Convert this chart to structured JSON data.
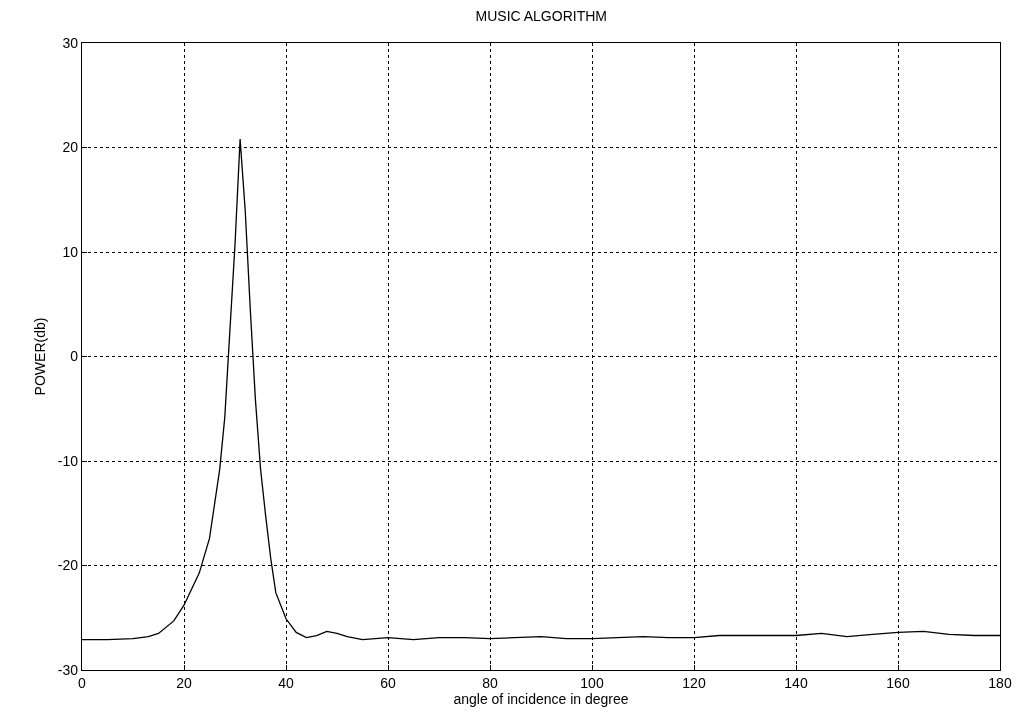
{
  "chart_data": {
    "type": "line",
    "title": "MUSIC ALGORITHM",
    "xlabel": "angle of incidence in degree",
    "ylabel": "POWER(db)",
    "series": [
      {
        "color": "#000000",
        "x": [
          0,
          5,
          10,
          13,
          15,
          18,
          20,
          23,
          25,
          27,
          28,
          29,
          30,
          31,
          32,
          33,
          34,
          35,
          36,
          37,
          38,
          40,
          42,
          44,
          46,
          48,
          50,
          52,
          55,
          60,
          65,
          70,
          75,
          80,
          90,
          95,
          100,
          110,
          115,
          120,
          125,
          135,
          140,
          145,
          150,
          155,
          160,
          165,
          170,
          175,
          180
        ],
        "values": [
          -27.1,
          -27.1,
          -27.0,
          -26.8,
          -26.5,
          -25.3,
          -23.8,
          -20.7,
          -17.4,
          -10.8,
          -5.8,
          2.5,
          10.7,
          20.8,
          14.0,
          4.5,
          -4.1,
          -10.7,
          -15.2,
          -19.3,
          -22.6,
          -25.1,
          -26.4,
          -26.9,
          -26.7,
          -26.3,
          -26.5,
          -26.8,
          -27.1,
          -26.9,
          -27.1,
          -26.9,
          -26.9,
          -27.0,
          -26.8,
          -27.0,
          -27.0,
          -26.8,
          -26.9,
          -26.9,
          -26.7,
          -26.7,
          -26.7,
          -26.5,
          -26.8,
          -26.6,
          -26.4,
          -26.3,
          -26.6,
          -26.7,
          -26.7
        ]
      }
    ],
    "xlim": [
      0,
      180
    ],
    "xticks": [
      0,
      20,
      40,
      60,
      80,
      100,
      120,
      140,
      160,
      180
    ],
    "ylim": [
      -30,
      30
    ],
    "yticks": [
      -30,
      -20,
      -10,
      0,
      10,
      20,
      30
    ],
    "grid": true,
    "marker": "none",
    "line_style": "solid"
  }
}
